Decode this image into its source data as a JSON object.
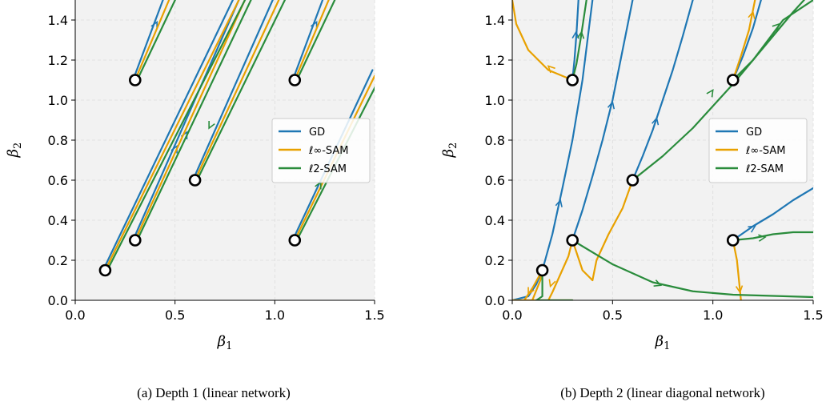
{
  "chart_data": [
    {
      "type": "line",
      "caption": "(a) Depth 1 (linear network)",
      "xlabel": "β1",
      "ylabel": "β2",
      "xlim": [
        0.0,
        1.5
      ],
      "ylim": [
        0.0,
        1.5
      ],
      "xticks": [
        "0.0",
        "0.5",
        "1.0",
        "1.5"
      ],
      "yticks": [
        "0.0",
        "0.2",
        "0.4",
        "0.6",
        "0.8",
        "1.0",
        "1.2",
        "1.4"
      ],
      "grid": true,
      "background": "#f2f2f2",
      "legend": {
        "position": "right",
        "entries": [
          {
            "label": "GD",
            "color": "#1f77b4"
          },
          {
            "label": "ℓ∞-SAM",
            "color": "#e8a100"
          },
          {
            "label": "ℓ2-SAM",
            "color": "#2a8c3c"
          }
        ]
      },
      "init_points": [
        [
          0.15,
          0.15
        ],
        [
          0.3,
          0.3
        ],
        [
          0.3,
          1.1
        ],
        [
          0.6,
          0.6
        ],
        [
          1.1,
          1.1
        ],
        [
          1.1,
          0.3
        ]
      ],
      "series": [
        {
          "name": "GD",
          "color": "#1f77b4",
          "paths": [
            [
              [
                0.15,
                0.15
              ],
              [
                0.8,
                1.5
              ]
            ],
            [
              [
                0.3,
                0.3
              ],
              [
                0.83,
                1.5
              ]
            ],
            [
              [
                0.3,
                1.1
              ],
              [
                0.45,
                1.5
              ]
            ],
            [
              [
                0.6,
                0.6
              ],
              [
                1.0,
                1.5
              ]
            ],
            [
              [
                1.1,
                1.1
              ],
              [
                1.25,
                1.5
              ]
            ],
            [
              [
                1.1,
                0.3
              ],
              [
                1.5,
                1.15
              ]
            ]
          ],
          "arrows": [
            [
              0.5,
              0.73,
              0.52,
              0.77
            ],
            [
              0.55,
              0.8,
              0.57,
              0.84
            ],
            [
              0.4,
              1.35,
              0.42,
              1.39
            ],
            [
              1.2,
              1.35,
              1.22,
              1.39
            ]
          ]
        },
        {
          "name": "ℓ∞-SAM",
          "color": "#e8a100",
          "paths": [
            [
              [
                0.15,
                0.15
              ],
              [
                0.82,
                1.5
              ]
            ],
            [
              [
                0.3,
                0.3
              ],
              [
                0.85,
                1.5
              ]
            ],
            [
              [
                0.3,
                1.1
              ],
              [
                0.47,
                1.5
              ]
            ],
            [
              [
                0.6,
                0.6
              ],
              [
                1.02,
                1.5
              ]
            ],
            [
              [
                1.1,
                1.1
              ],
              [
                1.27,
                1.5
              ]
            ],
            [
              [
                1.1,
                0.3
              ],
              [
                1.5,
                1.12
              ]
            ]
          ],
          "arrows": []
        },
        {
          "name": "ℓ2-SAM",
          "color": "#2a8c3c",
          "paths": [
            [
              [
                0.15,
                0.15
              ],
              [
                0.84,
                1.5
              ]
            ],
            [
              [
                0.3,
                0.3
              ],
              [
                0.87,
                1.5
              ]
            ],
            [
              [
                0.3,
                1.1
              ],
              [
                0.49,
                1.5
              ]
            ],
            [
              [
                0.6,
                0.6
              ],
              [
                1.04,
                1.5
              ]
            ],
            [
              [
                1.1,
                1.1
              ],
              [
                1.29,
                1.5
              ]
            ],
            [
              [
                1.1,
                0.3
              ],
              [
                1.5,
                1.08
              ]
            ]
          ],
          "arrows": [
            [
              0.68,
              0.9,
              0.66,
              0.86
            ],
            [
              1.2,
              0.55,
              1.22,
              0.59
            ]
          ]
        }
      ]
    },
    {
      "type": "line",
      "caption": "(b) Depth 2 (linear diagonal network)",
      "xlabel": "β1",
      "ylabel": "β2",
      "xlim": [
        0.0,
        1.5
      ],
      "ylim": [
        0.0,
        1.5
      ],
      "xticks": [
        "0.0",
        "0.5",
        "1.0",
        "1.5"
      ],
      "yticks": [
        "0.0",
        "0.2",
        "0.4",
        "0.6",
        "0.8",
        "1.0",
        "1.2",
        "1.4"
      ],
      "grid": true,
      "background": "#f2f2f2",
      "legend": {
        "position": "right",
        "entries": [
          {
            "label": "GD",
            "color": "#1f77b4"
          },
          {
            "label": "ℓ∞-SAM",
            "color": "#e8a100"
          },
          {
            "label": "ℓ2-SAM",
            "color": "#2a8c3c"
          }
        ]
      },
      "init_points": [
        [
          0.15,
          0.15
        ],
        [
          0.3,
          0.3
        ],
        [
          0.3,
          1.1
        ],
        [
          0.6,
          0.6
        ],
        [
          1.1,
          1.1
        ],
        [
          1.1,
          0.3
        ]
      ],
      "series": [
        {
          "name": "GD",
          "color": "#1f77b4",
          "paths": [
            [
              [
                0.0,
                0.0
              ],
              [
                0.08,
                0.02
              ],
              [
                0.12,
                0.08
              ],
              [
                0.15,
                0.15
              ],
              [
                0.2,
                0.33
              ],
              [
                0.25,
                0.56
              ],
              [
                0.3,
                0.8
              ],
              [
                0.35,
                1.1
              ],
              [
                0.4,
                1.5
              ]
            ],
            [
              [
                0.3,
                0.3
              ],
              [
                0.35,
                0.45
              ],
              [
                0.4,
                0.62
              ],
              [
                0.45,
                0.8
              ],
              [
                0.5,
                1.0
              ],
              [
                0.55,
                1.25
              ],
              [
                0.6,
                1.5
              ]
            ],
            [
              [
                0.3,
                1.1
              ],
              [
                0.31,
                1.2
              ],
              [
                0.32,
                1.33
              ],
              [
                0.33,
                1.5
              ]
            ],
            [
              [
                0.6,
                0.6
              ],
              [
                0.65,
                0.72
              ],
              [
                0.7,
                0.85
              ],
              [
                0.75,
                1.0
              ],
              [
                0.8,
                1.15
              ],
              [
                0.85,
                1.32
              ],
              [
                0.9,
                1.5
              ]
            ],
            [
              [
                1.1,
                1.1
              ],
              [
                1.15,
                1.22
              ],
              [
                1.2,
                1.36
              ],
              [
                1.24,
                1.5
              ]
            ],
            [
              [
                1.1,
                0.3
              ],
              [
                1.2,
                0.37
              ],
              [
                1.3,
                0.43
              ],
              [
                1.4,
                0.5
              ],
              [
                1.5,
                0.56
              ]
            ]
          ],
          "arrows": [
            [
              0.23,
              0.46,
              0.24,
              0.5
            ],
            [
              0.49,
              0.95,
              0.5,
              0.99
            ],
            [
              0.71,
              0.87,
              0.72,
              0.91
            ],
            [
              0.315,
              1.3,
              0.318,
              1.34
            ],
            [
              1.17,
              0.345,
              1.21,
              0.37
            ]
          ]
        },
        {
          "name": "ℓ∞-SAM",
          "color": "#e8a100",
          "paths": [
            [
              [
                0.06,
                0.0
              ],
              [
                0.1,
                0.06
              ],
              [
                0.15,
                0.15
              ]
            ],
            [
              [
                0.15,
                0.15
              ],
              [
                0.14,
                0.1
              ],
              [
                0.12,
                0.05
              ],
              [
                0.1,
                0.0
              ]
            ],
            [
              [
                0.3,
                0.3
              ],
              [
                0.28,
                0.22
              ],
              [
                0.24,
                0.13
              ],
              [
                0.2,
                0.04
              ],
              [
                0.18,
                0.0
              ]
            ],
            [
              [
                0.3,
                0.3
              ],
              [
                0.35,
                0.15
              ],
              [
                0.4,
                0.1
              ]
            ],
            [
              [
                0.0,
                0.0
              ],
              [
                0.3,
                0.0
              ]
            ],
            [
              [
                0.4,
                0.1
              ],
              [
                0.42,
                0.2
              ],
              [
                0.48,
                0.33
              ],
              [
                0.55,
                0.46
              ],
              [
                0.6,
                0.6
              ]
            ],
            [
              [
                0.0,
                1.5
              ],
              [
                0.02,
                1.38
              ],
              [
                0.08,
                1.25
              ],
              [
                0.18,
                1.15
              ],
              [
                0.3,
                1.1
              ]
            ],
            [
              [
                1.1,
                1.1
              ],
              [
                1.14,
                1.22
              ],
              [
                1.18,
                1.35
              ],
              [
                1.21,
                1.5
              ]
            ],
            [
              [
                1.1,
                0.3
              ],
              [
                1.12,
                0.2
              ],
              [
                1.13,
                0.1
              ],
              [
                1.14,
                0.0
              ]
            ]
          ],
          "arrows": [
            [
              0.2,
              1.15,
              0.18,
              1.17
            ],
            [
              0.2,
              0.1,
              0.19,
              0.07
            ],
            [
              0.09,
              0.05,
              0.08,
              0.03
            ],
            [
              1.13,
              0.08,
              1.135,
              0.04
            ],
            [
              1.19,
              1.4,
              1.2,
              1.44
            ]
          ]
        },
        {
          "name": "ℓ2-SAM",
          "color": "#2a8c3c",
          "paths": [
            [
              [
                0.12,
                0.0
              ],
              [
                0.15,
                0.02
              ],
              [
                0.15,
                0.15
              ]
            ],
            [
              [
                0.12,
                0.0
              ],
              [
                0.3,
                0.0
              ]
            ],
            [
              [
                0.3,
                0.3
              ],
              [
                0.5,
                0.18
              ],
              [
                0.7,
                0.09
              ],
              [
                0.9,
                0.045
              ],
              [
                1.1,
                0.028
              ],
              [
                1.5,
                0.016
              ]
            ],
            [
              [
                0.3,
                1.1
              ],
              [
                0.32,
                1.18
              ],
              [
                0.34,
                1.3
              ],
              [
                0.37,
                1.5
              ]
            ],
            [
              [
                0.6,
                0.6
              ],
              [
                0.75,
                0.72
              ],
              [
                0.9,
                0.86
              ],
              [
                1.0,
                0.97
              ],
              [
                1.1,
                1.08
              ],
              [
                1.2,
                1.2
              ],
              [
                1.35,
                1.4
              ],
              [
                1.5,
                1.5
              ]
            ],
            [
              [
                1.1,
                1.1
              ],
              [
                1.2,
                1.2
              ],
              [
                1.3,
                1.32
              ],
              [
                1.4,
                1.44
              ],
              [
                1.5,
                1.55
              ]
            ],
            [
              [
                1.1,
                0.3
              ],
              [
                1.2,
                0.31
              ],
              [
                1.3,
                0.33
              ],
              [
                1.4,
                0.34
              ],
              [
                1.5,
                0.34
              ]
            ]
          ],
          "arrows": [
            [
              0.7,
              0.09,
              0.74,
              0.075
            ],
            [
              0.34,
              1.3,
              0.345,
              1.34
            ],
            [
              1.22,
              0.31,
              1.26,
              0.315
            ],
            [
              1.3,
              1.35,
              1.33,
              1.38
            ],
            [
              0.98,
              1.02,
              1.0,
              1.05
            ]
          ]
        }
      ]
    }
  ]
}
